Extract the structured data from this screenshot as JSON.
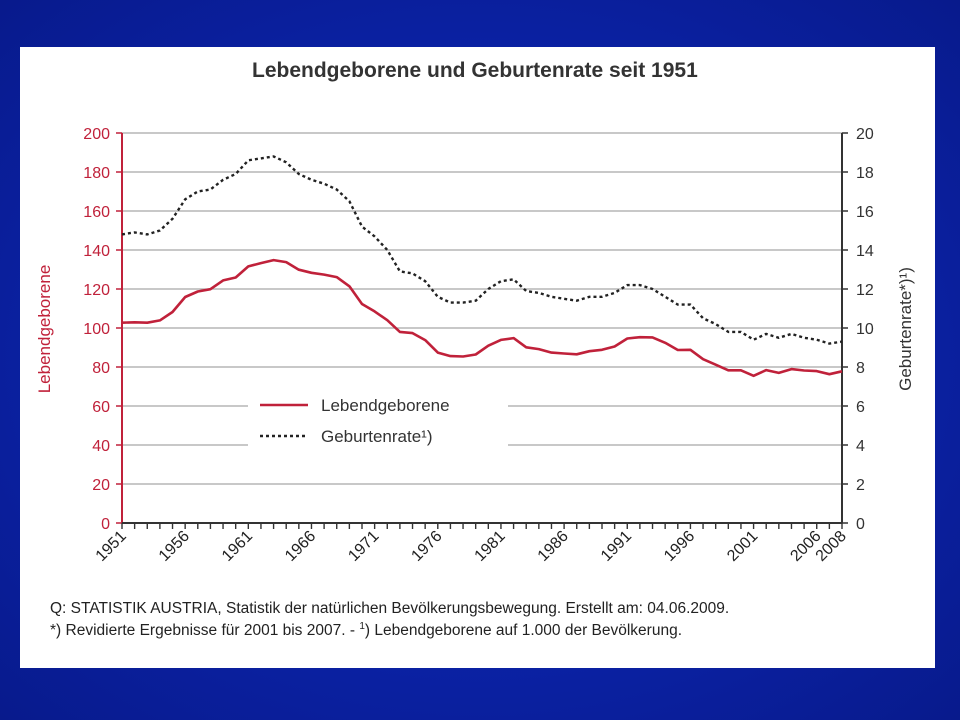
{
  "chart_data": {
    "type": "line",
    "title": "Lebendgeborene und Geburtenrate seit 1951",
    "ylabel": "Lebendgeborene",
    "y2label": "Geburtenrate*)¹)",
    "ylim": [
      0,
      200
    ],
    "y2lim": [
      0,
      20
    ],
    "y_ticks": [
      "0",
      "20",
      "40",
      "60",
      "80",
      "100",
      "120",
      "140",
      "160",
      "180",
      "200"
    ],
    "y2_ticks": [
      "0",
      "2",
      "4",
      "6",
      "8",
      "10",
      "12",
      "14",
      "16",
      "18",
      "20"
    ],
    "x_ticks": [
      "1951",
      "1956",
      "1961",
      "1966",
      "1971",
      "1976",
      "1981",
      "1986",
      "1991",
      "1996",
      "2001",
      "2006",
      "2008"
    ],
    "xlim": [
      1951,
      2008
    ],
    "grid": true,
    "legend_position": "bottom-left",
    "x": [
      1951,
      1952,
      1953,
      1954,
      1955,
      1956,
      1957,
      1958,
      1959,
      1960,
      1961,
      1962,
      1963,
      1964,
      1965,
      1966,
      1967,
      1968,
      1969,
      1970,
      1971,
      1972,
      1973,
      1974,
      1975,
      1976,
      1977,
      1978,
      1979,
      1980,
      1981,
      1982,
      1983,
      1984,
      1985,
      1986,
      1987,
      1988,
      1989,
      1990,
      1991,
      1992,
      1993,
      1994,
      1995,
      1996,
      1997,
      1998,
      1999,
      2000,
      2001,
      2002,
      2003,
      2004,
      2005,
      2006,
      2007,
      2008
    ],
    "series": [
      {
        "name": "Lebendgeborene",
        "axis": "left",
        "color": "#c0213a",
        "style": "solid",
        "values": [
          102.7,
          102.9,
          102.7,
          103.9,
          108.2,
          115.9,
          118.7,
          119.9,
          124.4,
          125.9,
          131.6,
          133.3,
          134.8,
          133.8,
          129.9,
          128.3,
          127.4,
          126.1,
          121.4,
          112.3,
          108.5,
          104.0,
          98.0,
          97.4,
          93.8,
          87.4,
          85.6,
          85.4,
          86.4,
          90.9,
          93.9,
          94.8,
          90.1,
          89.2,
          87.4,
          86.9,
          86.5,
          88.1,
          88.8,
          90.5,
          94.6,
          95.3,
          95.2,
          92.4,
          88.7,
          88.8,
          84.0,
          81.2,
          78.3,
          78.3,
          75.5,
          78.4,
          77.0,
          78.9,
          78.2,
          77.9,
          76.3,
          77.8
        ]
      },
      {
        "name": "Geburtenrate¹)",
        "axis": "right",
        "color": "#222222",
        "style": "dotted",
        "values": [
          14.8,
          14.9,
          14.8,
          15.0,
          15.6,
          16.6,
          17.0,
          17.1,
          17.6,
          17.9,
          18.6,
          18.7,
          18.8,
          18.5,
          17.9,
          17.6,
          17.4,
          17.1,
          16.5,
          15.2,
          14.7,
          14.0,
          12.9,
          12.8,
          12.4,
          11.6,
          11.3,
          11.3,
          11.4,
          12.0,
          12.4,
          12.5,
          11.9,
          11.8,
          11.6,
          11.5,
          11.4,
          11.6,
          11.6,
          11.8,
          12.2,
          12.2,
          12.0,
          11.6,
          11.2,
          11.2,
          10.5,
          10.2,
          9.8,
          9.8,
          9.4,
          9.7,
          9.5,
          9.7,
          9.5,
          9.4,
          9.2,
          9.3
        ]
      }
    ],
    "legend": [
      {
        "label": "Lebendgeborene",
        "series": 0
      },
      {
        "label": "Geburtenrate¹)",
        "series": 1
      }
    ]
  },
  "footnotes": {
    "source": "Q: STATISTIK AUSTRIA, Statistik der natürlichen Bevölkerungsbewegung. Erstellt am: 04.06.2009.",
    "revised_prefix": "*) Revidierte Ergebnisse für 2001 bis 2007. - ",
    "footnote_mark": "1",
    "footnote_text": ") Lebendgeborene auf 1.000 der Bevölkerung."
  },
  "colors": {
    "background": "#0b22a6",
    "slide": "#ffffff",
    "grid": "#a8a8a8",
    "left_axis": "#c0213a",
    "right_axis": "#333333"
  }
}
